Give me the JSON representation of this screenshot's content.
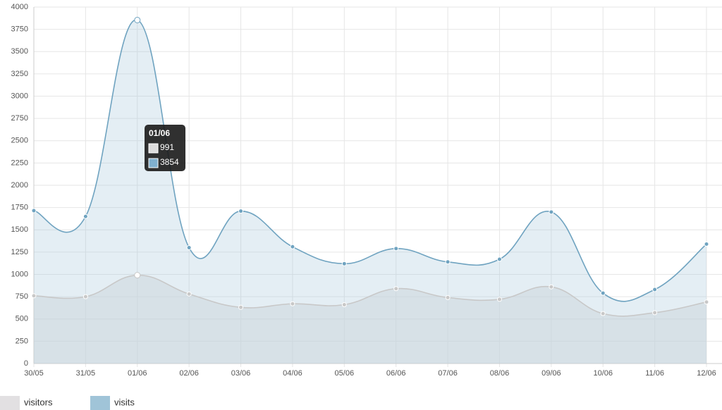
{
  "chart_data": {
    "type": "line",
    "categories": [
      "30/05",
      "31/05",
      "01/06",
      "02/06",
      "03/06",
      "04/06",
      "05/06",
      "06/06",
      "07/06",
      "08/06",
      "09/06",
      "10/06",
      "11/06",
      "12/06"
    ],
    "series": [
      {
        "name": "visitors",
        "color": "#c8c8c8",
        "fill": "#dcdcdc",
        "values": [
          760,
          750,
          991,
          780,
          630,
          670,
          660,
          840,
          740,
          720,
          860,
          560,
          570,
          690
        ]
      },
      {
        "name": "visits",
        "color": "#6fa3c0",
        "fill": "#a7c8da",
        "values": [
          1715,
          1650,
          3854,
          1300,
          1710,
          1310,
          1120,
          1290,
          1140,
          1170,
          1700,
          790,
          830,
          1340
        ]
      }
    ],
    "ylim": [
      0,
      4000
    ],
    "yticks": [
      0,
      250,
      500,
      750,
      1000,
      1250,
      1500,
      1750,
      2000,
      2250,
      2500,
      2750,
      3000,
      3250,
      3500,
      3750,
      4000
    ],
    "grid": true,
    "legend": "bottom",
    "highlight": 2
  }
}
